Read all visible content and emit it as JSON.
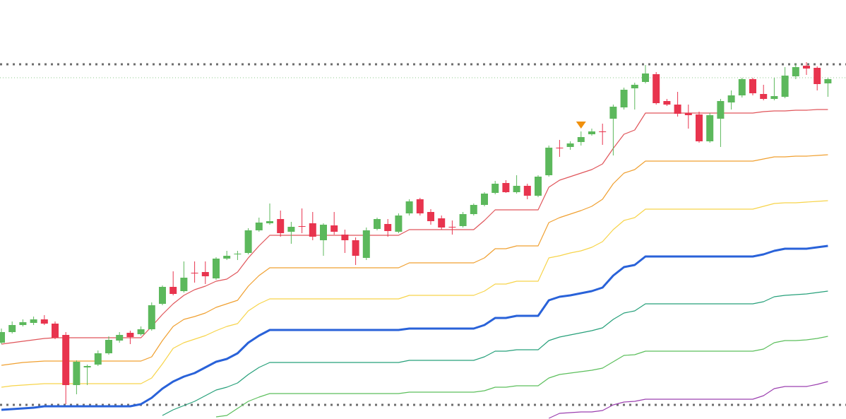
{
  "chart_data": {
    "type": "candlestick",
    "ylim": [
      7,
      600
    ],
    "up_color": "#5cb85c",
    "down_color": "#e8344e",
    "open": [
      115,
      130,
      140,
      143,
      148,
      142,
      126,
      55,
      80,
      84,
      100,
      118,
      129,
      127,
      134,
      170,
      194,
      188,
      214,
      215,
      206,
      234,
      240,
      242,
      274,
      284,
      290,
      272,
      280,
      284,
      260,
      281,
      268,
      260,
      235,
      276,
      283,
      272,
      298,
      318,
      300,
      291,
      279,
      280,
      297,
      310,
      327,
      341,
      328,
      337,
      323,
      352,
      391,
      392,
      399,
      410,
      414,
      432,
      448,
      475,
      484,
      495,
      457,
      452,
      440,
      438,
      400,
      432,
      455,
      465,
      488,
      467,
      460,
      463,
      492,
      507,
      504,
      482
    ],
    "high": [
      135,
      145,
      148,
      152,
      154,
      145,
      130,
      90,
      84,
      104,
      124,
      130,
      132,
      138,
      172,
      196,
      216,
      230,
      230,
      230,
      236,
      245,
      245,
      277,
      292,
      312,
      302,
      286,
      305,
      300,
      284,
      300,
      275,
      264,
      278,
      292,
      290,
      298,
      318,
      320,
      304,
      295,
      288,
      300,
      312,
      328,
      344,
      345,
      352,
      340,
      352,
      394,
      402,
      400,
      414,
      418,
      425,
      452,
      476,
      483,
      508,
      498,
      460,
      470,
      452,
      442,
      440,
      460,
      472,
      490,
      490,
      480,
      490,
      505,
      510,
      512,
      506,
      490
    ],
    "low": [
      113,
      128,
      138,
      140,
      140,
      120,
      28,
      42,
      55,
      82,
      98,
      115,
      113,
      125,
      132,
      168,
      182,
      186,
      200,
      198,
      204,
      232,
      232,
      240,
      272,
      282,
      265,
      255,
      270,
      260,
      238,
      268,
      242,
      225,
      232,
      274,
      265,
      270,
      295,
      295,
      282,
      275,
      268,
      278,
      295,
      308,
      325,
      327,
      326,
      318,
      321,
      350,
      378,
      388,
      394,
      408,
      395,
      380,
      445,
      445,
      482,
      452,
      450,
      435,
      418,
      398,
      398,
      392,
      445,
      462,
      465,
      458,
      458,
      461,
      488,
      494,
      472,
      463
    ],
    "close": [
      130,
      140,
      144,
      148,
      142,
      122,
      55,
      88,
      82,
      100,
      119,
      126,
      123,
      134,
      168,
      194,
      184,
      207,
      213,
      209,
      234,
      238,
      241,
      274,
      285,
      287,
      270,
      279,
      279,
      265,
      282,
      272,
      260,
      238,
      274,
      290,
      273,
      295,
      315,
      298,
      287,
      278,
      278,
      297,
      310,
      326,
      340,
      328,
      337,
      323,
      350,
      391,
      390,
      397,
      406,
      414,
      413,
      449,
      473,
      480,
      496,
      454,
      452,
      439,
      437,
      400,
      437,
      457,
      465,
      488,
      468,
      460,
      464,
      493,
      505,
      503,
      481,
      488
    ],
    "series": [
      {
        "color": "#e0555a",
        "width": 1.2,
        "values": [
          113,
          115,
          117,
          119,
          121,
          122,
          122,
          122,
          122,
          122,
          122,
          122,
          122,
          122,
          138,
          155,
          170,
          182,
          190,
          195,
          202,
          205,
          215,
          235,
          252,
          267,
          267,
          267,
          267,
          267,
          267,
          267,
          267,
          267,
          267,
          267,
          267,
          267,
          275,
          275,
          275,
          275,
          275,
          275,
          275,
          288,
          303,
          303,
          303,
          303,
          303,
          335,
          345,
          350,
          355,
          360,
          368,
          390,
          410,
          416,
          440,
          440,
          440,
          440,
          440,
          440,
          440,
          440,
          440,
          440,
          440,
          442,
          443,
          443,
          444,
          444,
          445,
          445
        ]
      },
      {
        "color": "#f0a030",
        "width": 1.2,
        "values": [
          83,
          85,
          87,
          88,
          89,
          89,
          89,
          89,
          89,
          89,
          89,
          89,
          89,
          89,
          95,
          118,
          138,
          148,
          152,
          157,
          165,
          170,
          175,
          195,
          210,
          221,
          221,
          221,
          221,
          221,
          221,
          221,
          221,
          221,
          221,
          221,
          221,
          221,
          228,
          228,
          228,
          228,
          228,
          228,
          228,
          235,
          248,
          248,
          252,
          252,
          252,
          285,
          292,
          297,
          302,
          308,
          318,
          340,
          355,
          360,
          372,
          372,
          372,
          372,
          372,
          372,
          372,
          372,
          372,
          372,
          372,
          375,
          378,
          378,
          379,
          379,
          380,
          381
        ]
      },
      {
        "color": "#f7d44a",
        "width": 1.2,
        "values": [
          52,
          54,
          55,
          56,
          57,
          57,
          57,
          57,
          57,
          57,
          57,
          57,
          57,
          57,
          65,
          85,
          107,
          115,
          120,
          125,
          132,
          138,
          142,
          160,
          170,
          177,
          177,
          177,
          177,
          177,
          177,
          177,
          177,
          177,
          177,
          177,
          177,
          177,
          182,
          182,
          182,
          182,
          182,
          182,
          182,
          188,
          198,
          198,
          202,
          202,
          202,
          235,
          238,
          242,
          245,
          250,
          258,
          275,
          288,
          292,
          304,
          304,
          304,
          304,
          304,
          304,
          304,
          304,
          304,
          304,
          304,
          308,
          312,
          313,
          313,
          314,
          315,
          316
        ]
      },
      {
        "color": "#2962d9",
        "width": 3,
        "values": [
          20,
          21,
          22,
          23,
          25,
          25,
          25,
          25,
          25,
          25,
          25,
          25,
          25,
          28,
          37,
          50,
          60,
          67,
          72,
          80,
          88,
          92,
          100,
          115,
          125,
          133,
          133,
          133,
          133,
          133,
          133,
          133,
          133,
          133,
          133,
          133,
          133,
          133,
          135,
          135,
          135,
          135,
          135,
          135,
          135,
          140,
          150,
          150,
          153,
          153,
          153,
          175,
          180,
          182,
          185,
          188,
          193,
          210,
          222,
          225,
          237,
          237,
          237,
          237,
          237,
          237,
          237,
          237,
          237,
          237,
          237,
          240,
          245,
          248,
          248,
          248,
          250,
          252
        ]
      },
      {
        "color": "#26a07a",
        "width": 1.2,
        "values": [
          null,
          null,
          null,
          null,
          null,
          null,
          null,
          null,
          null,
          null,
          null,
          null,
          null,
          null,
          null,
          12,
          20,
          26,
          32,
          40,
          48,
          52,
          58,
          70,
          80,
          87,
          87,
          87,
          87,
          87,
          87,
          87,
          87,
          87,
          87,
          87,
          87,
          87,
          90,
          90,
          90,
          90,
          90,
          90,
          90,
          95,
          103,
          103,
          105,
          105,
          105,
          118,
          123,
          126,
          129,
          132,
          136,
          148,
          157,
          160,
          170,
          170,
          170,
          170,
          170,
          170,
          170,
          170,
          170,
          170,
          170,
          173,
          180,
          182,
          183,
          184,
          186,
          188
        ]
      },
      {
        "color": "#5cbf5c",
        "width": 1.2,
        "values": [
          null,
          null,
          null,
          null,
          null,
          null,
          null,
          null,
          null,
          null,
          null,
          null,
          null,
          null,
          null,
          null,
          null,
          null,
          null,
          null,
          10,
          12,
          22,
          32,
          38,
          43,
          43,
          43,
          43,
          43,
          43,
          43,
          43,
          43,
          43,
          43,
          43,
          43,
          45,
          45,
          45,
          45,
          45,
          45,
          45,
          47,
          52,
          52,
          54,
          54,
          54,
          65,
          70,
          72,
          74,
          76,
          79,
          88,
          97,
          98,
          103,
          103,
          103,
          103,
          103,
          103,
          103,
          103,
          103,
          103,
          103,
          106,
          115,
          118,
          118,
          119,
          121,
          124
        ]
      },
      {
        "color": "#9c40b0",
        "width": 1.2,
        "values": [
          null,
          null,
          null,
          null,
          null,
          null,
          null,
          null,
          null,
          null,
          null,
          null,
          null,
          null,
          null,
          null,
          null,
          null,
          null,
          null,
          null,
          null,
          null,
          null,
          null,
          null,
          null,
          null,
          null,
          null,
          null,
          null,
          null,
          null,
          null,
          null,
          null,
          null,
          null,
          null,
          null,
          null,
          null,
          null,
          null,
          null,
          null,
          null,
          null,
          null,
          null,
          8,
          15,
          16,
          17,
          17,
          19,
          27,
          31,
          32,
          35,
          35,
          35,
          35,
          35,
          35,
          35,
          35,
          35,
          35,
          35,
          40,
          50,
          53,
          53,
          53,
          56,
          60
        ]
      }
    ],
    "hlines": [
      {
        "value": 509,
        "color": "#6e6e6e",
        "style": "heavy"
      },
      {
        "value": 490,
        "color": "#8bc98b",
        "style": "light"
      },
      {
        "value": 27,
        "color": "#6e6e6e",
        "style": "heavy"
      }
    ],
    "markers": [
      {
        "index": 54,
        "value": 423,
        "color": "#f0900c"
      }
    ]
  }
}
